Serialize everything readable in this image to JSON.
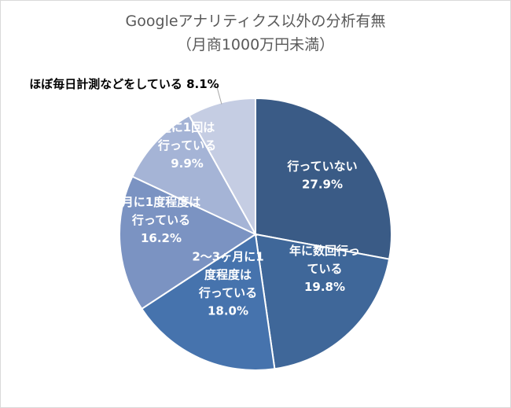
{
  "chart_data": {
    "type": "pie",
    "title": "Googleアナリティクス以外の分析有無",
    "subtitle": "（月商1000万円未満）",
    "slices": [
      {
        "lines": [
          "行っていない"
        ],
        "pct": "27.9%",
        "value": 27.9,
        "color": "#3a5b86"
      },
      {
        "lines": [
          "年に数回行っ",
          "ている"
        ],
        "pct": "19.8%",
        "value": 19.8,
        "color": "#3f6799"
      },
      {
        "lines": [
          "2～3ヶ月に1",
          "度程度は",
          "行っている"
        ],
        "pct": "18.0%",
        "value": 18.0,
        "color": "#4673ad"
      },
      {
        "lines": [
          "月に1度程度は",
          "行っている"
        ],
        "pct": "16.2%",
        "value": 16.2,
        "color": "#7b93c2"
      },
      {
        "lines": [
          "週に1回は",
          "行っている"
        ],
        "pct": "9.9%",
        "value": 9.9,
        "color": "#a5b4d6"
      },
      {
        "lines": [
          "ほぼ毎日計測などをしている"
        ],
        "pct": "8.1%",
        "value": 8.1,
        "color": "#c5cde3",
        "outside": true
      }
    ],
    "legend": "none"
  }
}
